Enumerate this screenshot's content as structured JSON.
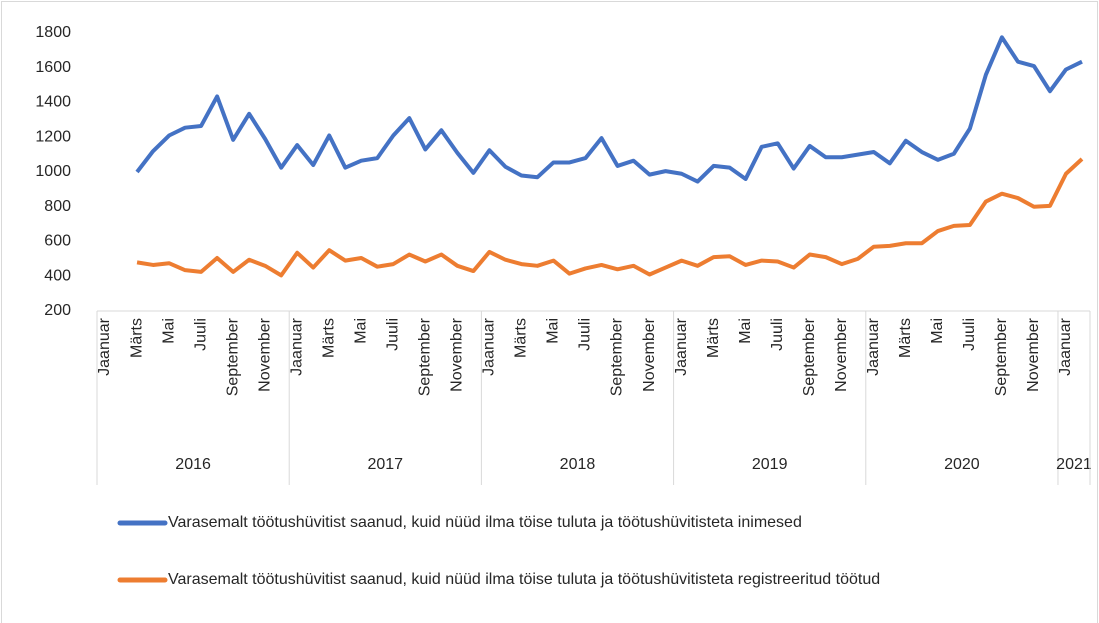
{
  "chart_data": {
    "type": "line",
    "categories": [
      null,
      null,
      "Märts",
      null,
      "Mai",
      null,
      "Juuli",
      null,
      "September",
      null,
      "November",
      null,
      "Jaanuar",
      null,
      "Märts",
      null,
      "Mai",
      null,
      "Juuli",
      null,
      "September",
      null,
      "November",
      null,
      "Jaanuar",
      null,
      "Märts",
      null,
      "Mai",
      null,
      "Juuli",
      null,
      "September",
      null,
      "November",
      null,
      "Jaanuar",
      null,
      "Märts",
      null,
      "Mai",
      null,
      "Juuli",
      null,
      "September",
      null,
      "November",
      null,
      "Jaanuar",
      null,
      "Märts",
      null,
      "Mai",
      null,
      "Juuli",
      null,
      "September",
      null,
      "November",
      null,
      "Jaanuar",
      null
    ],
    "first_category": "Jaanuar",
    "x_groups": [
      {
        "label": "2016",
        "span": 12
      },
      {
        "label": "2017",
        "span": 12
      },
      {
        "label": "2018",
        "span": 12
      },
      {
        "label": "2019",
        "span": 12
      },
      {
        "label": "2020",
        "span": 12
      },
      {
        "label": "2021",
        "span": 2
      }
    ],
    "series": [
      {
        "name": "Varasemalt töötushüvitist saanud, kuid nüüd ilma töise tuluta ja töötushüvitisteta inimesed",
        "color": "#4472c4",
        "values": [
          null,
          null,
          1000,
          1120,
          1210,
          1255,
          1265,
          1435,
          1185,
          1335,
          1190,
          1025,
          1155,
          1040,
          1210,
          1025,
          1065,
          1080,
          1210,
          1310,
          1130,
          1240,
          1110,
          995,
          1125,
          1030,
          980,
          970,
          1055,
          1055,
          1080,
          1195,
          1035,
          1065,
          985,
          1005,
          990,
          945,
          1035,
          1025,
          960,
          1145,
          1165,
          1020,
          1150,
          1085,
          1085,
          1100,
          1115,
          1050,
          1180,
          1115,
          1070,
          1105,
          1250,
          1560,
          1775,
          1635,
          1610,
          1465,
          1590,
          1635
        ]
      },
      {
        "name": "Varasemalt töötushüvitist saanud, kuid nüüd ilma töise tuluta ja töötushüvitisteta registreeritud töötud",
        "color": "#ed7d31",
        "values": [
          null,
          null,
          480,
          465,
          475,
          435,
          425,
          505,
          425,
          495,
          460,
          405,
          535,
          450,
          550,
          490,
          505,
          455,
          470,
          525,
          485,
          525,
          460,
          430,
          540,
          495,
          470,
          460,
          490,
          415,
          445,
          465,
          440,
          460,
          410,
          450,
          490,
          460,
          510,
          515,
          465,
          490,
          485,
          450,
          525,
          510,
          470,
          500,
          570,
          575,
          590,
          590,
          660,
          690,
          695,
          830,
          875,
          850,
          800,
          805,
          990,
          1075
        ]
      }
    ],
    "ylim": [
      200,
      1800
    ],
    "yticks": [
      200,
      400,
      600,
      800,
      1000,
      1200,
      1400,
      1600,
      1800
    ],
    "grid": false
  }
}
